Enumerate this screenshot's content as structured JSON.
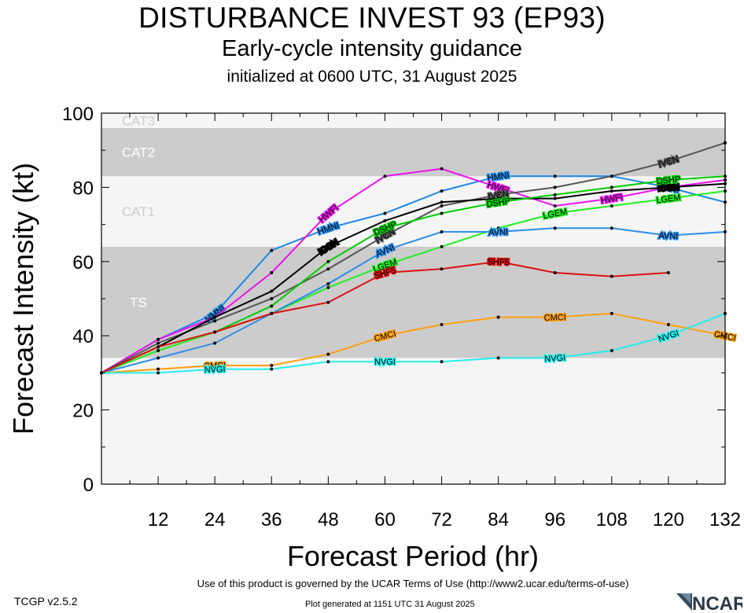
{
  "header": {
    "title": "DISTURBANCE INVEST 93 (EP93)",
    "subtitle": "Early-cycle intensity guidance",
    "init": "initialized at 0600 UTC, 31 August 2025"
  },
  "footer": {
    "terms": "Use of this product is governed by the UCAR Terms of Use (http://www2.ucar.edu/terms-of-use)",
    "generated": "Plot generated at 1151 UTC   31 August 2025",
    "version": "TCGP v2.5.2",
    "logo_text": "NCAR"
  },
  "chart_data": {
    "type": "line",
    "xlabel": "Forecast Period (hr)",
    "ylabel": "Forecast Intensity (kt)",
    "xlim": [
      0,
      132
    ],
    "ylim": [
      0,
      100
    ],
    "xticks": [
      12,
      24,
      36,
      48,
      60,
      72,
      84,
      96,
      108,
      120,
      132
    ],
    "yticks": [
      0,
      20,
      40,
      60,
      80,
      100
    ],
    "bands": [
      {
        "label": "",
        "range": [
          0,
          34
        ],
        "color": "#f5f5f5"
      },
      {
        "label": "TS",
        "range": [
          34,
          64
        ],
        "color": "#cccccc"
      },
      {
        "label": "CAT1",
        "range": [
          64,
          83
        ],
        "color": "#f5f5f5"
      },
      {
        "label": "CAT2",
        "range": [
          83,
          96
        ],
        "color": "#cccccc"
      },
      {
        "label": "CAT3",
        "range": [
          96,
          100
        ],
        "color": "#f5f5f5"
      }
    ],
    "series": [
      {
        "name": "HMNI",
        "color": "#1e88e5",
        "label_x": [
          24,
          48,
          84,
          120
        ],
        "x": [
          0,
          12,
          24,
          36,
          48,
          60,
          72,
          84,
          96,
          108,
          120,
          132
        ],
        "y": [
          30,
          39,
          46,
          63,
          69,
          73,
          79,
          83,
          83,
          83,
          80,
          76
        ]
      },
      {
        "name": "HWFI",
        "color": "#ee11ee",
        "label_x": [
          48,
          84,
          108
        ],
        "x": [
          0,
          12,
          24,
          36,
          48,
          60,
          72,
          84,
          96,
          108,
          120,
          132
        ],
        "y": [
          30,
          39,
          45,
          57,
          73,
          83,
          85,
          80,
          75,
          77,
          80,
          82
        ]
      },
      {
        "name": "IVCN",
        "color": "#555555",
        "label_x": [
          60,
          84,
          120
        ],
        "x": [
          0,
          12,
          24,
          36,
          48,
          60,
          72,
          84,
          96,
          108,
          120,
          132
        ],
        "y": [
          30,
          38,
          44,
          50,
          58,
          67,
          75,
          78,
          80,
          83,
          87,
          92
        ]
      },
      {
        "name": "ICON",
        "color": "#000000",
        "label_x": [
          48,
          120
        ],
        "x": [
          0,
          12,
          24,
          36,
          48,
          60,
          72,
          84,
          96,
          108,
          120,
          132
        ],
        "y": [
          30,
          37,
          45,
          52,
          64,
          71,
          76,
          77,
          77,
          79,
          80,
          81
        ]
      },
      {
        "name": "DSHP",
        "color": "#00cc00",
        "label_x": [
          60,
          84,
          120
        ],
        "x": [
          0,
          12,
          24,
          36,
          48,
          60,
          72,
          84,
          96,
          108,
          120,
          132
        ],
        "y": [
          30,
          36,
          41,
          48,
          60,
          69,
          73,
          76,
          78,
          80,
          82,
          83
        ]
      },
      {
        "name": "LGEM",
        "color": "#22ee22",
        "label_x": [
          60,
          96,
          120
        ],
        "x": [
          0,
          12,
          24,
          36,
          48,
          60,
          72,
          84,
          96,
          108,
          120,
          132
        ],
        "y": [
          30,
          36,
          41,
          46,
          53,
          59,
          64,
          69,
          73,
          75,
          77,
          79
        ]
      },
      {
        "name": "AVNI",
        "color": "#2d8de8",
        "label_x": [
          60,
          84,
          120
        ],
        "x": [
          0,
          12,
          24,
          36,
          48,
          60,
          72,
          84,
          96,
          108,
          120,
          132
        ],
        "y": [
          30,
          34,
          38,
          46,
          54,
          63,
          68,
          68,
          69,
          69,
          67,
          68
        ]
      },
      {
        "name": "SHF5",
        "color": "#dd1111",
        "label_x": [
          60,
          84
        ],
        "x": [
          0,
          12,
          24,
          36,
          48,
          60,
          72,
          84,
          96,
          108,
          120
        ],
        "y": [
          30,
          37,
          41,
          46,
          49,
          57,
          58,
          60,
          57,
          56,
          57
        ]
      },
      {
        "name": "CMCI",
        "color": "#ff9f10",
        "label_x": [
          24,
          60,
          96,
          132
        ],
        "x": [
          0,
          12,
          24,
          36,
          48,
          60,
          72,
          84,
          96,
          108,
          120,
          132
        ],
        "y": [
          30,
          31,
          32,
          32,
          35,
          40,
          43,
          45,
          45,
          46,
          43,
          40
        ]
      },
      {
        "name": "NVGI",
        "color": "#22eeee",
        "label_x": [
          24,
          60,
          96,
          120
        ],
        "x": [
          0,
          12,
          24,
          36,
          48,
          60,
          72,
          84,
          96,
          108,
          120,
          132
        ],
        "y": [
          30,
          30,
          31,
          31,
          33,
          33,
          33,
          34,
          34,
          36,
          40,
          46
        ]
      }
    ]
  }
}
